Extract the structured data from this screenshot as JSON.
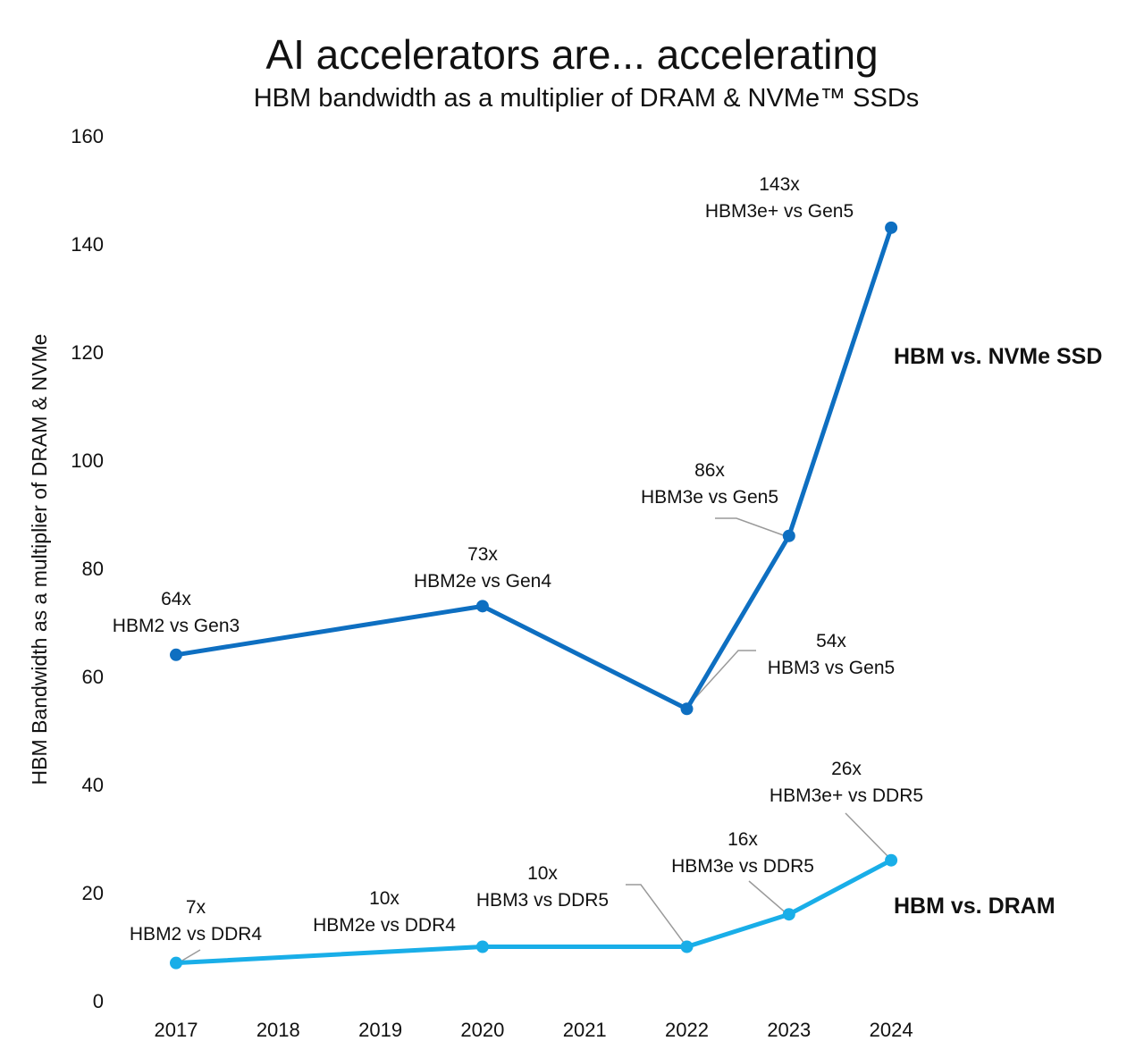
{
  "chart_data": {
    "type": "line",
    "title": "AI accelerators are... accelerating",
    "subtitle": "HBM bandwidth as a multiplier of DRAM & NVMe™ SSDs",
    "xlabel": "",
    "ylabel": "HBM Bandwidth as a multiplier of DRAM & NVMe",
    "categories": [
      "2017",
      "2018",
      "2019",
      "2020",
      "2021",
      "2022",
      "2023",
      "2024"
    ],
    "ylim": [
      0,
      160
    ],
    "yticks": [
      0,
      20,
      40,
      60,
      80,
      100,
      120,
      140,
      160
    ],
    "grid": false,
    "legend": "inline labels at right",
    "series": [
      {
        "name": "HBM vs. NVMe SSD",
        "color": "#0e6fc1",
        "points": [
          {
            "x": "2017",
            "y": 64,
            "value_label": "64x",
            "label": "HBM2 vs Gen3"
          },
          {
            "x": "2020",
            "y": 73,
            "value_label": "73x",
            "label": "HBM2e vs Gen4"
          },
          {
            "x": "2022",
            "y": 54,
            "value_label": "54x",
            "label": "HBM3 vs Gen5"
          },
          {
            "x": "2023",
            "y": 86,
            "value_label": "86x",
            "label": "HBM3e vs Gen5"
          },
          {
            "x": "2024",
            "y": 143,
            "value_label": "143x",
            "label": "HBM3e+ vs Gen5"
          }
        ]
      },
      {
        "name": "HBM vs. DRAM",
        "color": "#19aee8",
        "points": [
          {
            "x": "2017",
            "y": 7,
            "value_label": "7x",
            "label": "HBM2 vs DDR4"
          },
          {
            "x": "2020",
            "y": 10,
            "value_label": "10x",
            "label": "HBM2e vs DDR4"
          },
          {
            "x": "2022",
            "y": 10,
            "value_label": "10x",
            "label": "HBM3 vs DDR5"
          },
          {
            "x": "2023",
            "y": 16,
            "value_label": "16x",
            "label": "HBM3e vs DDR5"
          },
          {
            "x": "2024",
            "y": 26,
            "value_label": "26x",
            "label": "HBM3e+ vs DDR5"
          }
        ]
      }
    ]
  }
}
